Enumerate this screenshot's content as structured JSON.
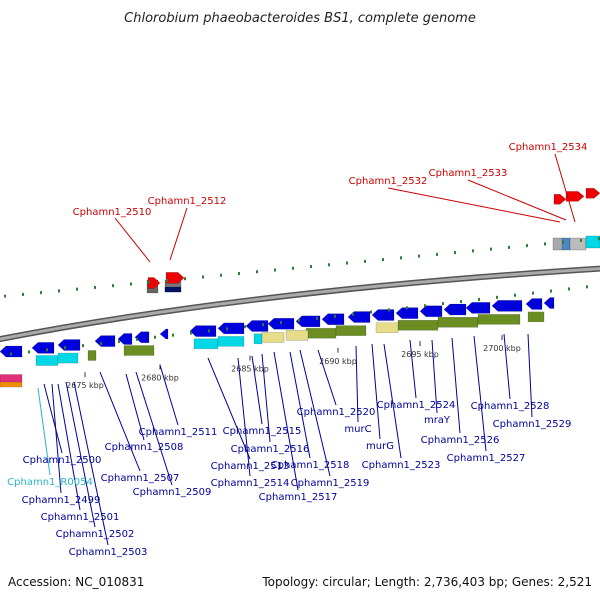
{
  "title": "Chlorobium phaeobacteroides BS1, complete genome",
  "accession": "Accession: NC_010831",
  "summary": "Topology: circular; Length: 2,736,403 bp; Genes: 2,521",
  "colors": {
    "label_red": "#cc0000",
    "label_blue": "#00009a",
    "label_cyan": "#2ab5c8",
    "gene_blue": "#0000dd",
    "gene_olive": "#6b8e23",
    "gene_khaki": "#e6dc8a",
    "gene_cyan": "#00d8e8",
    "gene_red": "#ee0000",
    "gene_gray": "#999999",
    "backbone": "#888888",
    "tick_green": "#2e7d32"
  },
  "kbp_ticks": [
    "2675 kbp",
    "2680 kbp",
    "2685 kbp",
    "2690 kbp",
    "2695 kbp",
    "2700 kbp"
  ],
  "labels_top_red": [
    "Cphamn1_2510",
    "Cphamn1_2512",
    "Cphamn1_2532",
    "Cphamn1_2533",
    "Cphamn1_2534"
  ],
  "labels_bottom": [
    "Cphamn1_2500",
    "Cphamn1_R0054",
    "Cphamn1_2499",
    "Cphamn1_2501",
    "Cphamn1_2502",
    "Cphamn1_2503",
    "Cphamn1_2507",
    "Cphamn1_2508",
    "Cphamn1_2509",
    "Cphamn1_2511",
    "Cphamn1_2513",
    "Cphamn1_2514",
    "Cphamn1_2515",
    "Cphamn1_2516",
    "Cphamn1_2517",
    "Cphamn1_2518",
    "Cphamn1_2519",
    "Cphamn1_2520",
    "murC",
    "murG",
    "Cphamn1_2523",
    "Cphamn1_2524",
    "mraY",
    "Cphamn1_2526",
    "Cphamn1_2527",
    "Cphamn1_2528",
    "Cphamn1_2529"
  ]
}
